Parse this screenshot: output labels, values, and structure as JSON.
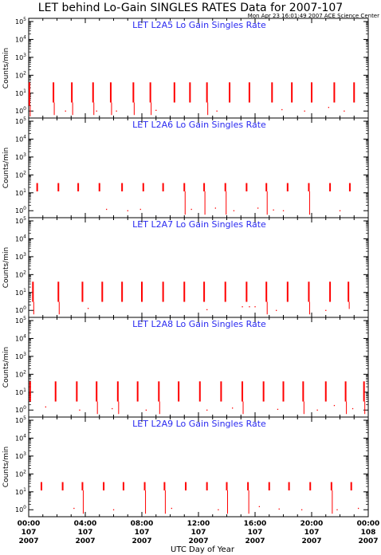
{
  "title": "LET behind Lo-Gain SINGLES RATES Data for 2007-107",
  "stamp": "Mon Apr 23 16:01:49 2007 ACE Science Center",
  "xlabel": "UTC Day of Year",
  "colors": {
    "data": "#ff0000",
    "panel_title": "#2a2af0",
    "axes": "#000000"
  },
  "chart_data": [
    {
      "type": "scatter",
      "title": "LET L2A5 Lo Gain Singles Rate",
      "ylabel": "Counts/min",
      "yscale": "log",
      "ylim": [
        0.5,
        100000
      ],
      "yticks": [
        "10",
        "10",
        "10",
        "10",
        "10",
        "10"
      ],
      "ytick_exponents": [
        "0",
        "1",
        "2",
        "3",
        "4",
        "5"
      ],
      "xlim": [
        0,
        24
      ],
      "x_units": "hours",
      "bursts": [
        {
          "x": 0.05,
          "top": 40,
          "bottom": 2,
          "drop": 0.5
        },
        {
          "x": 1.75,
          "top": 40,
          "bottom": 3,
          "drop": 0.6
        },
        {
          "x": 3.05,
          "top": 40,
          "bottom": 3,
          "drop": 0.6
        },
        {
          "x": 4.55,
          "top": 40,
          "bottom": 3,
          "drop": 0.6
        },
        {
          "x": 5.8,
          "top": 40,
          "bottom": 3,
          "drop": 0.6
        },
        {
          "x": 7.4,
          "top": 40,
          "bottom": 3,
          "drop": 0.6
        },
        {
          "x": 8.6,
          "top": 40,
          "bottom": 3,
          "drop": 0.6
        },
        {
          "x": 10.3,
          "top": 40,
          "bottom": 3
        },
        {
          "x": 11.4,
          "top": 40,
          "bottom": 3
        },
        {
          "x": 12.6,
          "top": 40,
          "bottom": 3,
          "drop": 0.6
        },
        {
          "x": 14.2,
          "top": 40,
          "bottom": 3
        },
        {
          "x": 15.6,
          "top": 40,
          "bottom": 3
        },
        {
          "x": 17.2,
          "top": 40,
          "bottom": 3
        },
        {
          "x": 18.6,
          "top": 40,
          "bottom": 3
        },
        {
          "x": 20.0,
          "top": 40,
          "bottom": 3
        },
        {
          "x": 21.6,
          "top": 40,
          "bottom": 3
        },
        {
          "x": 23.0,
          "top": 40,
          "bottom": 3
        }
      ],
      "dots": [
        [
          2.6,
          1
        ],
        [
          4.8,
          1
        ],
        [
          6.2,
          1
        ],
        [
          9.0,
          1.1
        ],
        [
          13.3,
          1
        ],
        [
          17.9,
          1.2
        ],
        [
          19.5,
          1
        ],
        [
          21.2,
          1.6
        ],
        [
          22.3,
          1
        ]
      ]
    },
    {
      "type": "scatter",
      "title": "LET L2A6 Lo Gain Singles Rate",
      "ylabel": "Counts/min",
      "yscale": "log",
      "ylim": [
        0.5,
        100000
      ],
      "yticks": [
        "10",
        "10",
        "10",
        "10",
        "10",
        "10"
      ],
      "ytick_exponents": [
        "0",
        "1",
        "2",
        "3",
        "4",
        "5"
      ],
      "xlim": [
        0,
        24
      ],
      "x_units": "hours",
      "bursts": [
        {
          "x": 0.6,
          "top": 35,
          "bottom": 12
        },
        {
          "x": 2.1,
          "top": 35,
          "bottom": 12
        },
        {
          "x": 3.5,
          "top": 35,
          "bottom": 12
        },
        {
          "x": 5.0,
          "top": 35,
          "bottom": 12
        },
        {
          "x": 6.6,
          "top": 35,
          "bottom": 12
        },
        {
          "x": 8.1,
          "top": 35,
          "bottom": 12
        },
        {
          "x": 9.5,
          "top": 35,
          "bottom": 12
        },
        {
          "x": 11.0,
          "top": 35,
          "bottom": 12,
          "drop": 0.6
        },
        {
          "x": 12.4,
          "top": 35,
          "bottom": 12,
          "drop": 0.6
        },
        {
          "x": 13.9,
          "top": 35,
          "bottom": 12,
          "drop": 0.6
        },
        {
          "x": 15.4,
          "top": 35,
          "bottom": 12
        },
        {
          "x": 16.8,
          "top": 35,
          "bottom": 12,
          "drop": 0.6
        },
        {
          "x": 18.3,
          "top": 35,
          "bottom": 12
        },
        {
          "x": 19.8,
          "top": 35,
          "bottom": 12,
          "drop": 0.6
        },
        {
          "x": 21.3,
          "top": 35,
          "bottom": 12
        },
        {
          "x": 22.7,
          "top": 35,
          "bottom": 12
        }
      ],
      "dots": [
        [
          5.5,
          1.2
        ],
        [
          7.0,
          1
        ],
        [
          7.9,
          1.2
        ],
        [
          11.5,
          1.2
        ],
        [
          13.2,
          1.4
        ],
        [
          14.5,
          1
        ],
        [
          16.2,
          1.4
        ],
        [
          17.3,
          1.1
        ],
        [
          18.0,
          1
        ],
        [
          22.0,
          1
        ]
      ]
    },
    {
      "type": "scatter",
      "title": "LET L2A7 Lo Gain Singles Rate",
      "ylabel": "Counts/min",
      "yscale": "log",
      "ylim": [
        0.5,
        100000
      ],
      "yticks": [
        "10",
        "10",
        "10",
        "10",
        "10",
        "10"
      ],
      "ytick_exponents": [
        "0",
        "1",
        "2",
        "3",
        "4",
        "5"
      ],
      "xlim": [
        0,
        24
      ],
      "x_units": "hours",
      "bursts": [
        {
          "x": 0.3,
          "top": 40,
          "bottom": 3,
          "drop": 0.6
        },
        {
          "x": 2.1,
          "top": 40,
          "bottom": 3,
          "drop": 0.6
        },
        {
          "x": 3.8,
          "top": 40,
          "bottom": 3
        },
        {
          "x": 5.2,
          "top": 40,
          "bottom": 3
        },
        {
          "x": 6.6,
          "top": 40,
          "bottom": 3
        },
        {
          "x": 8.0,
          "top": 40,
          "bottom": 3
        },
        {
          "x": 9.5,
          "top": 40,
          "bottom": 3
        },
        {
          "x": 11.0,
          "top": 40,
          "bottom": 3
        },
        {
          "x": 12.4,
          "top": 40,
          "bottom": 3
        },
        {
          "x": 13.9,
          "top": 40,
          "bottom": 3
        },
        {
          "x": 15.4,
          "top": 40,
          "bottom": 3
        },
        {
          "x": 16.8,
          "top": 40,
          "bottom": 3,
          "drop": 0.6
        },
        {
          "x": 18.3,
          "top": 40,
          "bottom": 3
        },
        {
          "x": 19.8,
          "top": 40,
          "bottom": 3,
          "drop": 0.6
        },
        {
          "x": 21.3,
          "top": 40,
          "bottom": 3
        },
        {
          "x": 22.6,
          "top": 40,
          "bottom": 3,
          "drop": 1.2
        }
      ],
      "dots": [
        [
          4.2,
          1.3
        ],
        [
          12.6,
          1.1
        ],
        [
          15.1,
          1.6
        ],
        [
          15.6,
          1.6
        ],
        [
          16.0,
          1.6
        ],
        [
          17.5,
          1
        ],
        [
          21.0,
          1
        ]
      ]
    },
    {
      "type": "scatter",
      "title": "LET L2A8 Lo Gain Singles Rate",
      "ylabel": "Counts/min",
      "yscale": "log",
      "ylim": [
        0.5,
        100000
      ],
      "yticks": [
        "10",
        "10",
        "10",
        "10",
        "10",
        "10"
      ],
      "ytick_exponents": [
        "0",
        "1",
        "2",
        "3",
        "4",
        "5"
      ],
      "xlim": [
        0,
        24
      ],
      "x_units": "hours",
      "bursts": [
        {
          "x": 0.1,
          "top": 40,
          "bottom": 3
        },
        {
          "x": 1.9,
          "top": 40,
          "bottom": 3
        },
        {
          "x": 3.4,
          "top": 40,
          "bottom": 3
        },
        {
          "x": 4.8,
          "top": 40,
          "bottom": 3,
          "drop": 0.6
        },
        {
          "x": 6.3,
          "top": 40,
          "bottom": 3,
          "drop": 0.6
        },
        {
          "x": 7.7,
          "top": 40,
          "bottom": 3
        },
        {
          "x": 9.2,
          "top": 40,
          "bottom": 3,
          "drop": 0.6
        },
        {
          "x": 10.6,
          "top": 40,
          "bottom": 3
        },
        {
          "x": 12.1,
          "top": 40,
          "bottom": 3
        },
        {
          "x": 13.6,
          "top": 40,
          "bottom": 3
        },
        {
          "x": 15.1,
          "top": 40,
          "bottom": 3,
          "drop": 0.6
        },
        {
          "x": 16.6,
          "top": 40,
          "bottom": 3
        },
        {
          "x": 18.0,
          "top": 40,
          "bottom": 3
        },
        {
          "x": 19.4,
          "top": 40,
          "bottom": 3,
          "drop": 0.6
        },
        {
          "x": 21.0,
          "top": 40,
          "bottom": 3
        },
        {
          "x": 22.4,
          "top": 40,
          "bottom": 3,
          "drop": 0.6
        },
        {
          "x": 23.7,
          "top": 40,
          "bottom": 3,
          "drop": 0.6
        }
      ],
      "dots": [
        [
          1.2,
          1.5
        ],
        [
          3.6,
          1
        ],
        [
          5.9,
          1.2
        ],
        [
          8.3,
          1
        ],
        [
          12.6,
          1
        ],
        [
          14.4,
          1.3
        ],
        [
          17.6,
          1.1
        ],
        [
          20.4,
          1
        ],
        [
          21.6,
          1.8
        ],
        [
          22.9,
          1.2
        ]
      ]
    },
    {
      "type": "scatter",
      "title": "LET L2A9 Lo Gain Singles Rate",
      "ylabel": "Counts/min",
      "yscale": "log",
      "ylim": [
        0.5,
        100000
      ],
      "yticks": [
        "10",
        "10",
        "10",
        "10",
        "10",
        "10"
      ],
      "ytick_exponents": [
        "0",
        "1",
        "2",
        "3",
        "4",
        "5"
      ],
      "xlim": [
        0,
        24
      ],
      "x_units": "hours",
      "xticks": [
        "00:00",
        "04:00",
        "08:00",
        "12:00",
        "16:00",
        "20:00",
        "00:00"
      ],
      "xtick_days": [
        "107",
        "107",
        "107",
        "107",
        "107",
        "107",
        "108"
      ],
      "xtick_years": [
        "2007",
        "2007",
        "2007",
        "2007",
        "2007",
        "2007",
        "2007"
      ],
      "bursts": [
        {
          "x": 0.9,
          "top": 35,
          "bottom": 12
        },
        {
          "x": 2.4,
          "top": 35,
          "bottom": 12
        },
        {
          "x": 3.8,
          "top": 35,
          "bottom": 12,
          "drop": 0.6
        },
        {
          "x": 5.3,
          "top": 35,
          "bottom": 12
        },
        {
          "x": 6.7,
          "top": 35,
          "bottom": 12
        },
        {
          "x": 8.2,
          "top": 35,
          "bottom": 12,
          "drop": 0.6
        },
        {
          "x": 9.6,
          "top": 35,
          "bottom": 12,
          "drop": 0.6
        },
        {
          "x": 11.1,
          "top": 35,
          "bottom": 12
        },
        {
          "x": 12.6,
          "top": 35,
          "bottom": 12
        },
        {
          "x": 14.0,
          "top": 35,
          "bottom": 12,
          "drop": 0.6
        },
        {
          "x": 15.5,
          "top": 35,
          "bottom": 12,
          "drop": 0.6
        },
        {
          "x": 17.0,
          "top": 35,
          "bottom": 12
        },
        {
          "x": 18.4,
          "top": 35,
          "bottom": 12
        },
        {
          "x": 19.9,
          "top": 35,
          "bottom": 12
        },
        {
          "x": 21.4,
          "top": 35,
          "bottom": 12,
          "drop": 0.6
        },
        {
          "x": 22.8,
          "top": 35,
          "bottom": 12
        }
      ],
      "dots": [
        [
          3.2,
          1.2
        ],
        [
          6.0,
          1
        ],
        [
          10.1,
          1.2
        ],
        [
          13.4,
          1
        ],
        [
          16.3,
          1.5
        ],
        [
          17.7,
          1.1
        ],
        [
          19.3,
          1
        ],
        [
          21.8,
          1
        ],
        [
          23.3,
          1.2
        ]
      ]
    }
  ]
}
